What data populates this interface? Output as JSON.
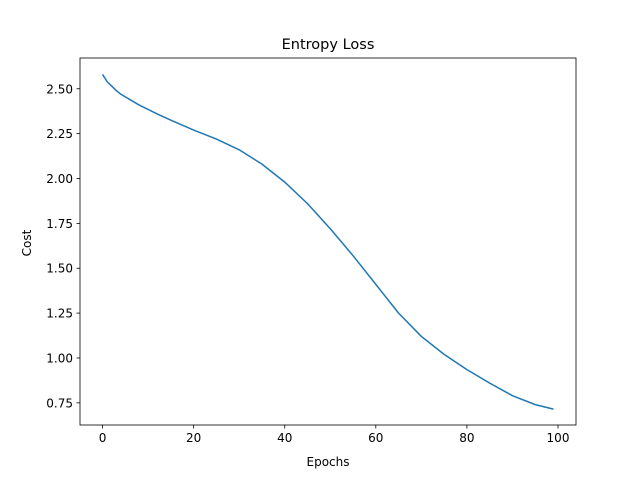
{
  "chart_data": {
    "type": "line",
    "title": "Entropy Loss",
    "xlabel": "Epochs",
    "ylabel": "Cost",
    "xlim": [
      -4.95,
      103.95
    ],
    "ylim": [
      0.6265,
      2.6715
    ],
    "xticks": [
      0,
      20,
      40,
      60,
      80,
      100
    ],
    "xtick_labels": [
      "0",
      "20",
      "40",
      "60",
      "80",
      "100"
    ],
    "yticks": [
      0.75,
      1.0,
      1.25,
      1.5,
      1.75,
      2.0,
      2.25,
      2.5
    ],
    "ytick_labels": [
      "0.75",
      "1.00",
      "1.25",
      "1.50",
      "1.75",
      "2.00",
      "2.25",
      "2.50"
    ],
    "grid": false,
    "line_color": "#1f77b4",
    "series": [
      {
        "x": [
          0,
          1,
          2,
          3,
          4,
          5,
          6,
          8,
          10,
          12,
          15,
          20,
          25,
          30,
          35,
          40,
          45,
          50,
          55,
          60,
          65,
          70,
          75,
          80,
          85,
          90,
          95,
          99
        ],
        "values": [
          2.58,
          2.54,
          2.515,
          2.49,
          2.47,
          2.455,
          2.44,
          2.41,
          2.385,
          2.36,
          2.325,
          2.27,
          2.22,
          2.16,
          2.08,
          1.98,
          1.86,
          1.72,
          1.57,
          1.41,
          1.25,
          1.12,
          1.02,
          0.935,
          0.86,
          0.79,
          0.74,
          0.715
        ]
      }
    ]
  }
}
